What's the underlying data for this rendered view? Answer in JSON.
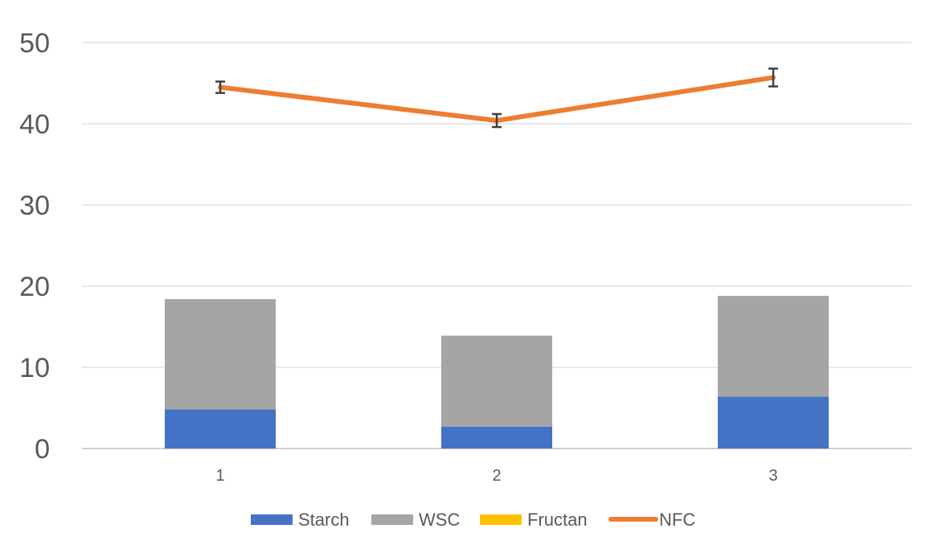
{
  "chart_data": {
    "type": "bar",
    "stacked": true,
    "categories": [
      "1",
      "2",
      "3"
    ],
    "series": [
      {
        "name": "Starch",
        "type": "bar",
        "color": "#4472C4",
        "values": [
          4.8,
          2.7,
          6.4
        ]
      },
      {
        "name": "WSC",
        "type": "bar",
        "color": "#A5A5A5",
        "values": [
          13.6,
          11.2,
          12.4
        ]
      },
      {
        "name": "Fructan",
        "type": "bar",
        "color": "#FFC000",
        "values": [
          0,
          0,
          0
        ]
      },
      {
        "name": "NFC",
        "type": "line",
        "color": "#ED7D31",
        "values": [
          44.5,
          40.4,
          45.7
        ],
        "error": [
          0.7,
          0.8,
          1.1
        ]
      }
    ],
    "title": "",
    "xlabel": "",
    "ylabel": "",
    "ylim": [
      0,
      50
    ],
    "yticks": [
      "0",
      "10",
      "20",
      "30",
      "40",
      "50"
    ],
    "grid": true,
    "legend_position": "bottom",
    "colors": {
      "grid": "#D9D9D9",
      "axis": "#BFBFBF",
      "error_bar": "#404040"
    }
  }
}
